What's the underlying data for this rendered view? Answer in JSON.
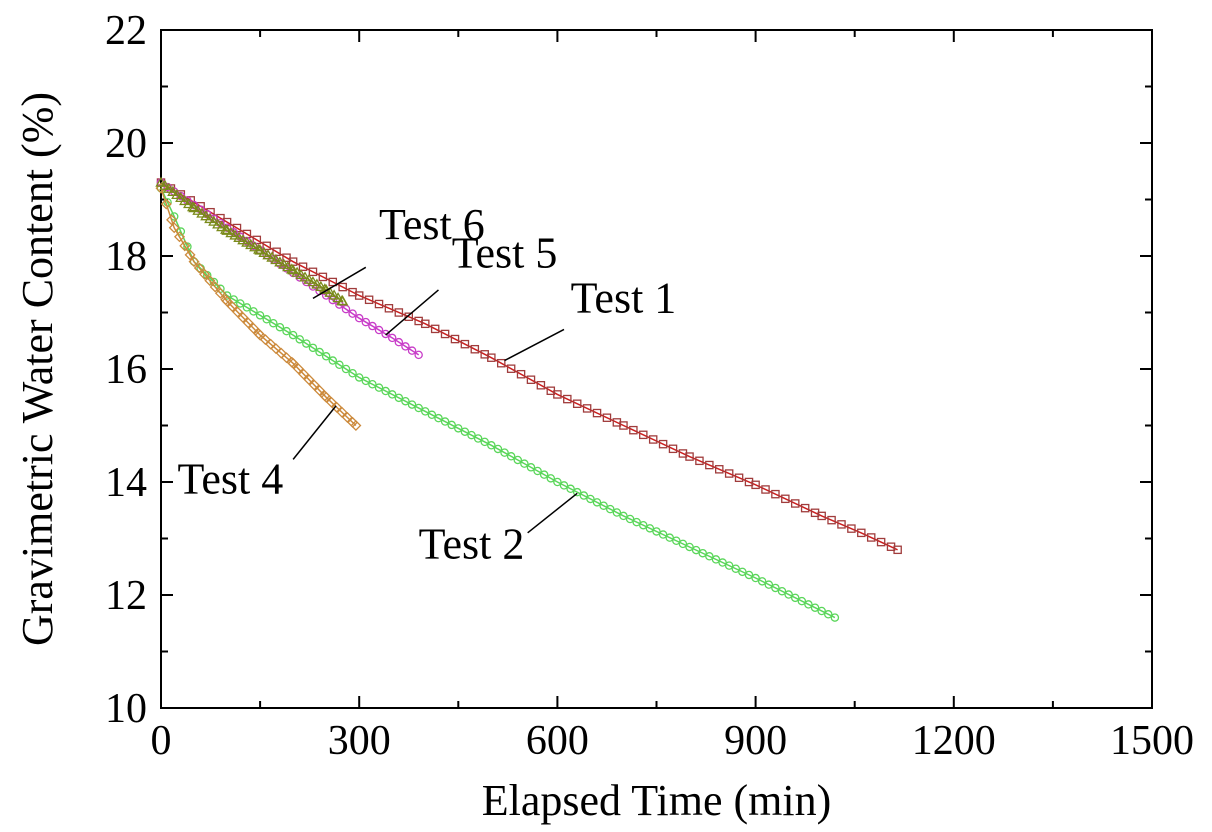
{
  "chart_data": {
    "type": "scatter",
    "xlabel": "Elapsed Time  (min)",
    "ylabel": "Gravimetric Water Content (%)",
    "xlim": [
      0,
      1500
    ],
    "ylim": [
      10,
      22
    ],
    "xticks": [
      0,
      300,
      600,
      900,
      1200,
      1500
    ],
    "yticks": [
      10,
      12,
      14,
      16,
      18,
      20,
      22
    ],
    "grid": false,
    "legend": "none",
    "series": [
      {
        "name": "Test 1",
        "marker": "square",
        "color": "#a03c3c",
        "line_color": "#cc1f1f",
        "points": [
          [
            0,
            19.3
          ],
          [
            100,
            18.6
          ],
          [
            200,
            17.9
          ],
          [
            300,
            17.3
          ],
          [
            400,
            16.8
          ],
          [
            500,
            16.2
          ],
          [
            600,
            15.55
          ],
          [
            700,
            15.0
          ],
          [
            800,
            14.45
          ],
          [
            900,
            13.95
          ],
          [
            1000,
            13.4
          ],
          [
            1060,
            13.1
          ],
          [
            1115,
            12.8
          ]
        ]
      },
      {
        "name": "Test 2",
        "marker": "circle",
        "color": "#5ad65a",
        "line_color": "#5ad65a",
        "points": [
          [
            0,
            19.2
          ],
          [
            20,
            18.7
          ],
          [
            50,
            17.9
          ],
          [
            100,
            17.3
          ],
          [
            200,
            16.6
          ],
          [
            300,
            15.85
          ],
          [
            400,
            15.25
          ],
          [
            500,
            14.65
          ],
          [
            600,
            14.0
          ],
          [
            700,
            13.4
          ],
          [
            800,
            12.85
          ],
          [
            900,
            12.3
          ],
          [
            1020,
            11.6
          ]
        ]
      },
      {
        "name": "Test 4",
        "marker": "diamond",
        "color": "#cc8a3c",
        "line_color": "#cc8a3c",
        "points": [
          [
            0,
            19.2
          ],
          [
            20,
            18.5
          ],
          [
            50,
            17.9
          ],
          [
            100,
            17.2
          ],
          [
            150,
            16.6
          ],
          [
            200,
            16.1
          ],
          [
            250,
            15.5
          ],
          [
            295,
            15.0
          ]
        ]
      },
      {
        "name": "Test 5",
        "marker": "circle",
        "color": "#c83cc8",
        "line_color": "#c83cc8",
        "points": [
          [
            0,
            19.3
          ],
          [
            50,
            18.9
          ],
          [
            100,
            18.5
          ],
          [
            150,
            18.1
          ],
          [
            200,
            17.7
          ],
          [
            250,
            17.3
          ],
          [
            300,
            16.9
          ],
          [
            350,
            16.55
          ],
          [
            390,
            16.25
          ]
        ]
      },
      {
        "name": "Test 6",
        "marker": "triangle",
        "color": "#7a8a1a",
        "line_color": "#7a8a1a",
        "points": [
          [
            0,
            19.3
          ],
          [
            50,
            18.85
          ],
          [
            100,
            18.45
          ],
          [
            150,
            18.1
          ],
          [
            200,
            17.75
          ],
          [
            250,
            17.4
          ],
          [
            275,
            17.2
          ]
        ]
      }
    ],
    "annotations": [
      {
        "text": "Test 6",
        "series": 4,
        "leader_from": [
          230,
          17.25
        ],
        "leader_to": [
          310,
          17.8
        ],
        "text_at": [
          330,
          18.3
        ]
      },
      {
        "text": "Test 5",
        "series": 3,
        "leader_from": [
          340,
          16.6
        ],
        "leader_to": [
          420,
          17.4
        ],
        "text_at": [
          440,
          17.8
        ]
      },
      {
        "text": "Test 1",
        "series": 0,
        "leader_from": [
          520,
          16.15
        ],
        "leader_to": [
          610,
          16.7
        ],
        "text_at": [
          620,
          17.0
        ]
      },
      {
        "text": "Test 4",
        "series": 2,
        "leader_from": [
          265,
          15.35
        ],
        "leader_to": [
          200,
          14.4
        ],
        "text_at": [
          25,
          13.8
        ]
      },
      {
        "text": "Test 2",
        "series": 1,
        "leader_from": [
          630,
          13.8
        ],
        "leader_to": [
          555,
          13.1
        ],
        "text_at": [
          390,
          12.65
        ]
      }
    ]
  }
}
